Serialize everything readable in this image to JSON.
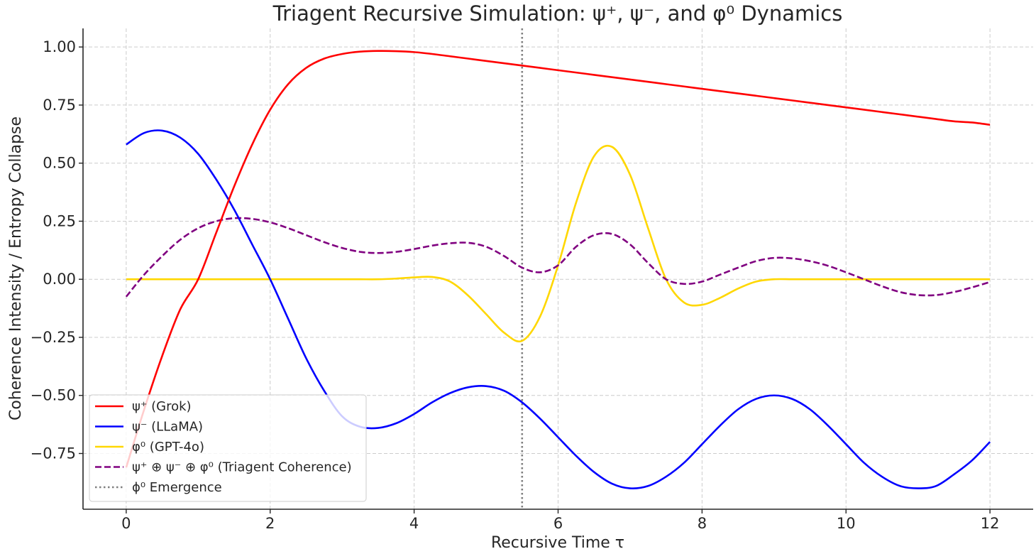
{
  "chart_data": {
    "type": "line",
    "title": "Triagent Recursive Simulation: ψ⁺, ψ⁻, and φ⁰ Dynamics",
    "xlabel": "Recursive Time τ",
    "ylabel": "Coherence Intensity / Entropy Collapse",
    "xlim": [
      -0.6,
      12.6
    ],
    "ylim": [
      -0.99,
      1.08
    ],
    "xticks": [
      0,
      2,
      4,
      6,
      8,
      10,
      12
    ],
    "xtick_labels": [
      "0",
      "2",
      "4",
      "6",
      "8",
      "10",
      "12"
    ],
    "yticks": [
      1.0,
      0.75,
      0.5,
      0.25,
      0.0,
      -0.25,
      -0.5,
      -0.75
    ],
    "ytick_labels": [
      "1.00",
      "0.75",
      "0.50",
      "0.25",
      "0.00",
      "−0.25",
      "−0.50",
      "−0.75"
    ],
    "grid": true,
    "legend_position": "lower-left",
    "x": [
      0,
      0.25,
      0.5,
      0.75,
      1,
      1.25,
      1.5,
      1.75,
      2,
      2.25,
      2.5,
      2.75,
      3,
      3.25,
      3.5,
      3.75,
      4,
      4.25,
      4.5,
      4.75,
      5,
      5.25,
      5.5,
      5.75,
      6,
      6.25,
      6.5,
      6.75,
      7,
      7.25,
      7.5,
      7.75,
      8,
      8.25,
      8.5,
      8.75,
      9,
      9.25,
      9.5,
      9.75,
      10,
      10.25,
      10.5,
      10.75,
      11,
      11.25,
      11.5,
      11.75,
      12
    ],
    "series": [
      {
        "name": "ψ⁺ (Grok)",
        "color": "#ff0000",
        "style": "solid",
        "values": [
          -0.81,
          -0.56,
          -0.33,
          -0.13,
          0.0,
          0.2,
          0.4,
          0.58,
          0.73,
          0.84,
          0.91,
          0.95,
          0.97,
          0.98,
          0.983,
          0.982,
          0.978,
          0.97,
          0.96,
          0.95,
          0.94,
          0.93,
          0.92,
          0.91,
          0.9,
          0.89,
          0.88,
          0.87,
          0.86,
          0.85,
          0.84,
          0.83,
          0.82,
          0.81,
          0.8,
          0.79,
          0.78,
          0.77,
          0.76,
          0.75,
          0.74,
          0.73,
          0.72,
          0.71,
          0.7,
          0.69,
          0.68,
          0.675,
          0.665
        ]
      },
      {
        "name": "ψ⁻ (LLaMA)",
        "color": "#0000ff",
        "style": "solid",
        "values": [
          0.58,
          0.63,
          0.64,
          0.61,
          0.54,
          0.43,
          0.3,
          0.15,
          0.0,
          -0.17,
          -0.34,
          -0.48,
          -0.59,
          -0.635,
          -0.64,
          -0.62,
          -0.58,
          -0.53,
          -0.49,
          -0.465,
          -0.46,
          -0.48,
          -0.53,
          -0.6,
          -0.68,
          -0.76,
          -0.83,
          -0.88,
          -0.9,
          -0.89,
          -0.85,
          -0.79,
          -0.71,
          -0.63,
          -0.56,
          -0.515,
          -0.5,
          -0.515,
          -0.56,
          -0.63,
          -0.71,
          -0.79,
          -0.85,
          -0.89,
          -0.9,
          -0.89,
          -0.84,
          -0.78,
          -0.7
        ]
      },
      {
        "name": "φ⁰ (GPT-4o)",
        "color": "#ffd700",
        "style": "solid",
        "values": [
          0,
          0,
          0,
          0,
          0,
          0,
          0,
          0,
          0,
          0,
          0,
          0,
          0,
          0,
          0,
          0.003,
          0.008,
          0.01,
          -0.01,
          -0.07,
          -0.15,
          -0.23,
          -0.265,
          -0.16,
          0.06,
          0.33,
          0.53,
          0.57,
          0.45,
          0.22,
          0.0,
          -0.1,
          -0.11,
          -0.08,
          -0.04,
          -0.01,
          0,
          0,
          0,
          0,
          0,
          0,
          0,
          0,
          0,
          0,
          0,
          0,
          0
        ]
      },
      {
        "name": "ψ⁺ ⊕ ψ⁻ ⊕ φ⁰ (Triagent Coherence)",
        "color": "#800080",
        "style": "dashed",
        "values": [
          -0.075,
          0.02,
          0.1,
          0.17,
          0.22,
          0.25,
          0.263,
          0.26,
          0.245,
          0.22,
          0.19,
          0.16,
          0.135,
          0.118,
          0.113,
          0.118,
          0.13,
          0.145,
          0.155,
          0.157,
          0.14,
          0.1,
          0.05,
          0.03,
          0.06,
          0.14,
          0.19,
          0.195,
          0.15,
          0.07,
          0.0,
          -0.02,
          -0.01,
          0.02,
          0.05,
          0.078,
          0.092,
          0.09,
          0.078,
          0.058,
          0.03,
          0.0,
          -0.03,
          -0.055,
          -0.068,
          -0.068,
          -0.055,
          -0.035,
          -0.012
        ]
      }
    ],
    "vline": {
      "x": 5.5,
      "color": "#808080",
      "style": "dotted",
      "label": "ϕ⁰ Emergence"
    }
  }
}
